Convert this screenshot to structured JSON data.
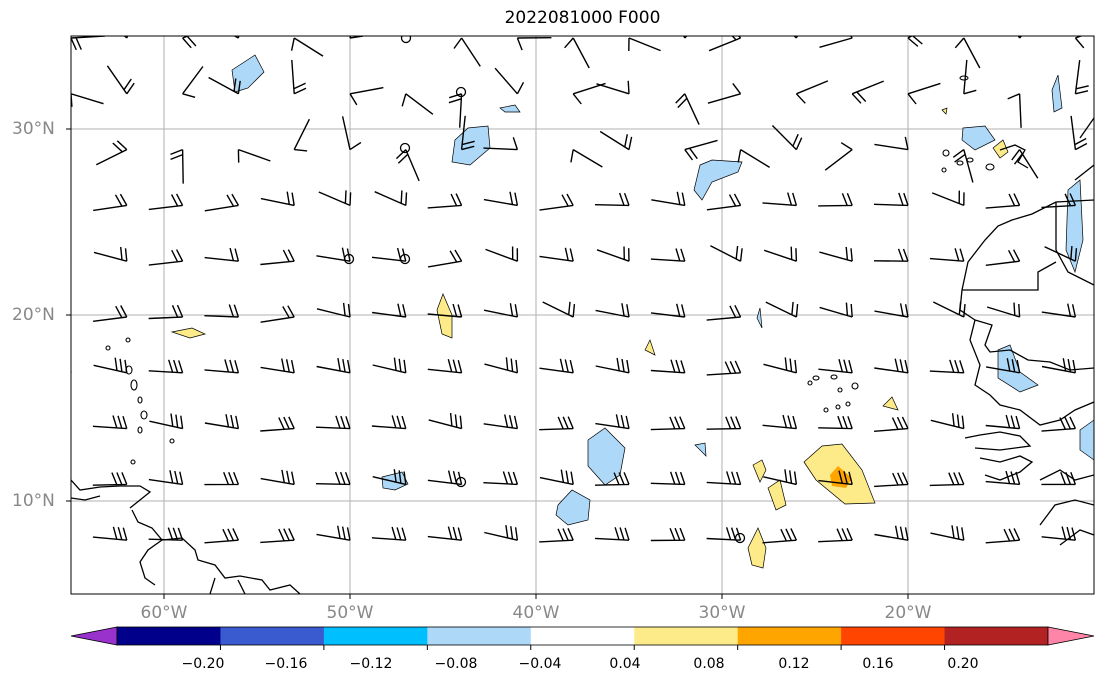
{
  "title": "2022081000 F000",
  "lat_labels": [
    "30°N",
    "20°N",
    "10°N"
  ],
  "lon_labels": [
    "60°W",
    "50°W",
    "40°W",
    "30°W",
    "20°W"
  ],
  "colorbar": {
    "tick_labels": [
      "−0.20",
      "−0.16",
      "−0.12",
      "−0.08",
      "−0.04",
      "0.04",
      "0.08",
      "0.12",
      "0.16",
      "0.20"
    ],
    "colors": [
      "#9932cc",
      "#00008b",
      "#3a5bcf",
      "#00bfff",
      "#add8f8",
      "#ffffff",
      "#fdeb8a",
      "#ffa500",
      "#ff4500",
      "#b22222",
      "#ff85a8"
    ]
  },
  "map": {
    "extent": {
      "lon_min": -65,
      "lon_max": -10,
      "lat_min": 5,
      "lat_max": 35
    },
    "gridlines": true,
    "wind_barbs": "dense field of wind barbs at 3° spacing, mostly easterly trade winds"
  }
}
